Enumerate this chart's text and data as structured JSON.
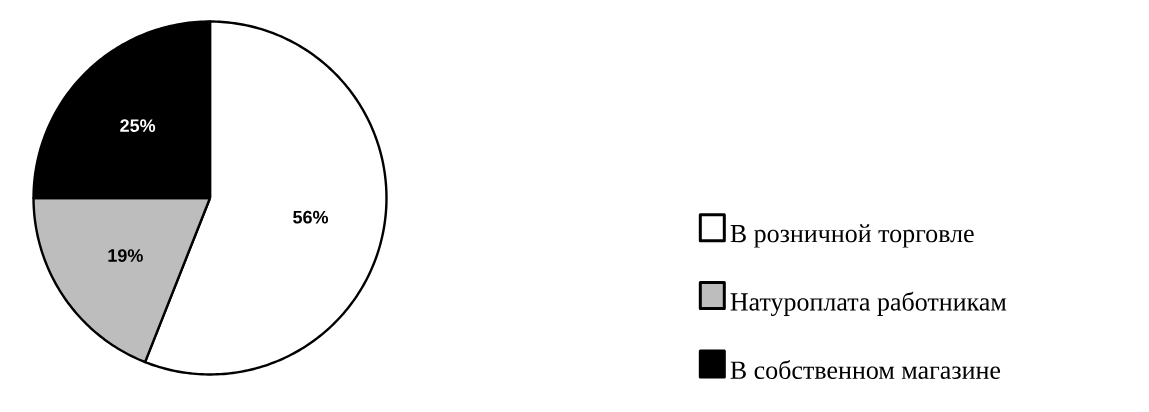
{
  "chart_data": {
    "type": "pie",
    "categories": [
      "В розничной торговле",
      "Натуроплата работникам",
      "В собственном магазине"
    ],
    "values": [
      56,
      19,
      25
    ],
    "colors": [
      "#ffffff",
      "#bdbdbd",
      "#000000"
    ],
    "value_labels": [
      "56%",
      "19%",
      "25%"
    ],
    "legend": "right"
  }
}
